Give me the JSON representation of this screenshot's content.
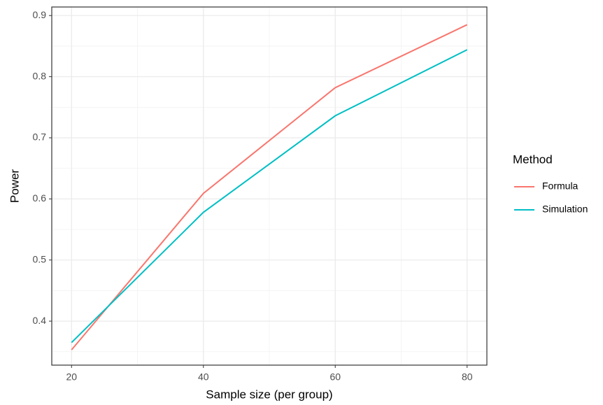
{
  "chart_data": {
    "type": "line",
    "x_label": "Sample size (per group)",
    "y_label": "Power",
    "x": [
      20,
      40,
      60,
      80
    ],
    "series": [
      {
        "name": "Formula",
        "color": "#F8766D",
        "values": [
          0.353,
          0.609,
          0.782,
          0.885
        ]
      },
      {
        "name": "Simulation",
        "color": "#00BFC4",
        "values": [
          0.365,
          0.578,
          0.736,
          0.844
        ]
      }
    ],
    "xlim": [
      17,
      83
    ],
    "ylim": [
      0.328,
      0.914
    ],
    "xticks": [
      20,
      40,
      60,
      80
    ],
    "yticks": [
      0.4,
      0.5,
      0.6,
      0.7,
      0.8,
      0.9
    ],
    "grid": true,
    "legend_title": "Method",
    "legend_position": "right"
  }
}
